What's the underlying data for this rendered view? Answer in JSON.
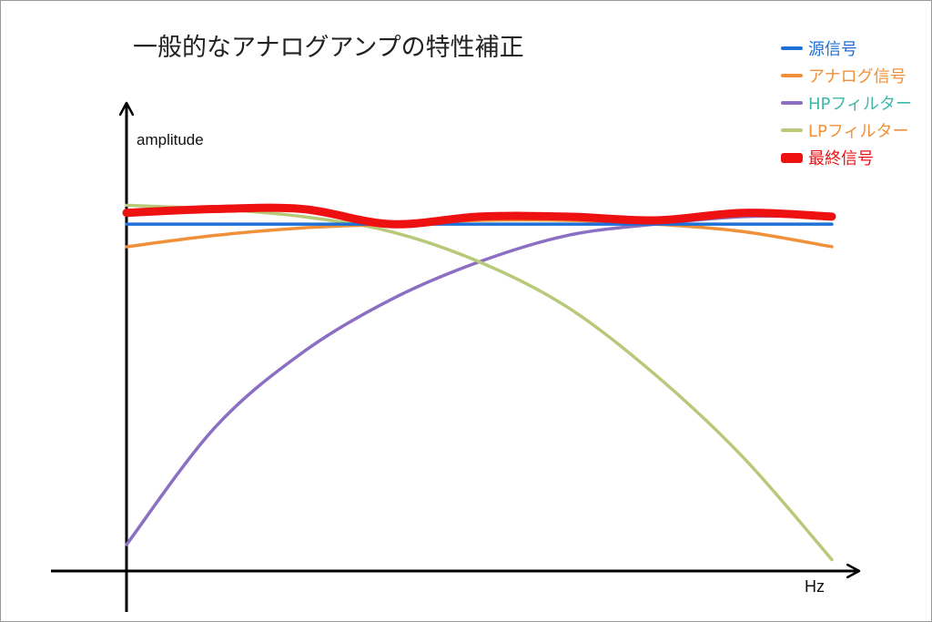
{
  "chart_data": {
    "type": "line",
    "title": "一般的なアナログアンプの特性補正",
    "ylabel": "amplitude",
    "xlabel": "Hz",
    "legend_position": "top-right",
    "grid": false,
    "x": [
      0,
      0.125,
      0.25,
      0.375,
      0.5,
      0.625,
      0.75,
      0.875,
      1.0
    ],
    "ylim": [
      0,
      1.0
    ],
    "series": [
      {
        "name": "源信号",
        "color": "#1f6fd6",
        "values": [
          0.92,
          0.92,
          0.92,
          0.92,
          0.92,
          0.92,
          0.92,
          0.92,
          0.92
        ]
      },
      {
        "name": "アナログ信号",
        "color": "#f0913a",
        "values": [
          0.86,
          0.89,
          0.91,
          0.92,
          0.93,
          0.93,
          0.92,
          0.9,
          0.86
        ]
      },
      {
        "name": "HPフィルター",
        "color": "#8b6fc2",
        "values": [
          0.07,
          0.38,
          0.58,
          0.72,
          0.82,
          0.89,
          0.92,
          0.94,
          0.94
        ]
      },
      {
        "name": "LPフィルター",
        "color": "#b8c97a",
        "values": [
          0.97,
          0.96,
          0.94,
          0.9,
          0.82,
          0.7,
          0.52,
          0.3,
          0.03
        ]
      },
      {
        "name": "最終信号",
        "color": "#ee1111",
        "values": [
          0.95,
          0.96,
          0.96,
          0.92,
          0.94,
          0.94,
          0.93,
          0.95,
          0.94
        ]
      }
    ],
    "legend_text_colors": {
      "源信号": "#1f6fd6",
      "アナログ信号": "#f0913a",
      "HPフィルター": "#3fb8a8",
      "LPフィルター": "#f0913a",
      "最終信号": "#ee1111"
    }
  }
}
